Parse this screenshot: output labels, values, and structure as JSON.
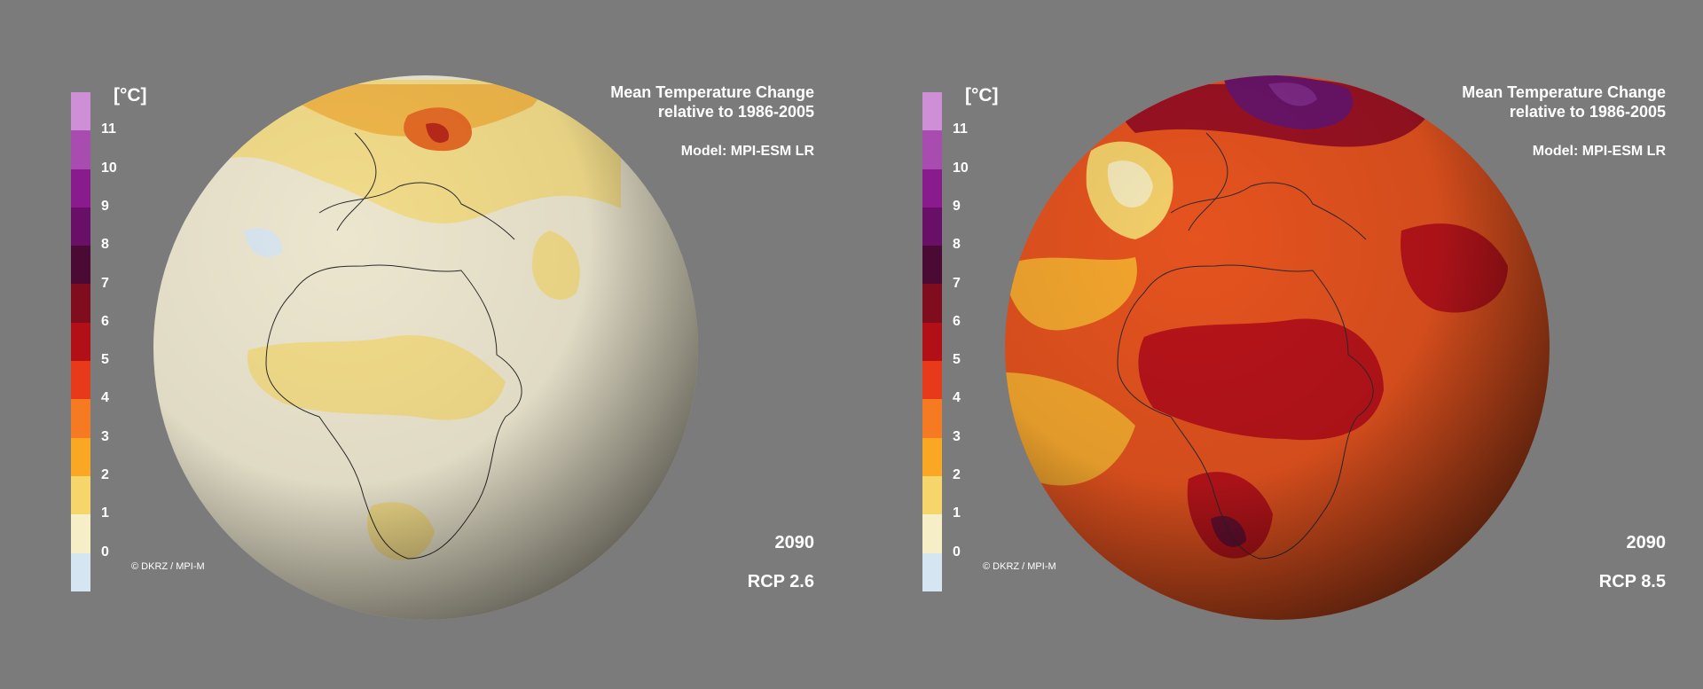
{
  "legend": {
    "unit": "[°C]",
    "ticks": [
      "11",
      "10",
      "9",
      "8",
      "7",
      "6",
      "5",
      "4",
      "3",
      "2",
      "1",
      "0"
    ],
    "colors": [
      "#cf8fd6",
      "#a84cb0",
      "#8a1b8f",
      "#6a0f68",
      "#4a0a33",
      "#7f0d1d",
      "#b30f17",
      "#e63a1a",
      "#f57a22",
      "#faa823",
      "#f6d66a",
      "#f6eec7",
      "#d5e6f2"
    ]
  },
  "panels": [
    {
      "title_line1": "Mean Temperature Change",
      "title_line2": "relative to 1986-2005",
      "model": "Model: MPI-ESM LR",
      "year": "2090",
      "scenario": "RCP 2.6",
      "credit": "© DKRZ / MPI-M"
    },
    {
      "title_line1": "Mean Temperature Change",
      "title_line2": "relative to 1986-2005",
      "model": "Model: MPI-ESM LR",
      "year": "2090",
      "scenario": "RCP 8.5",
      "credit": "© DKRZ / MPI-M"
    }
  ]
}
